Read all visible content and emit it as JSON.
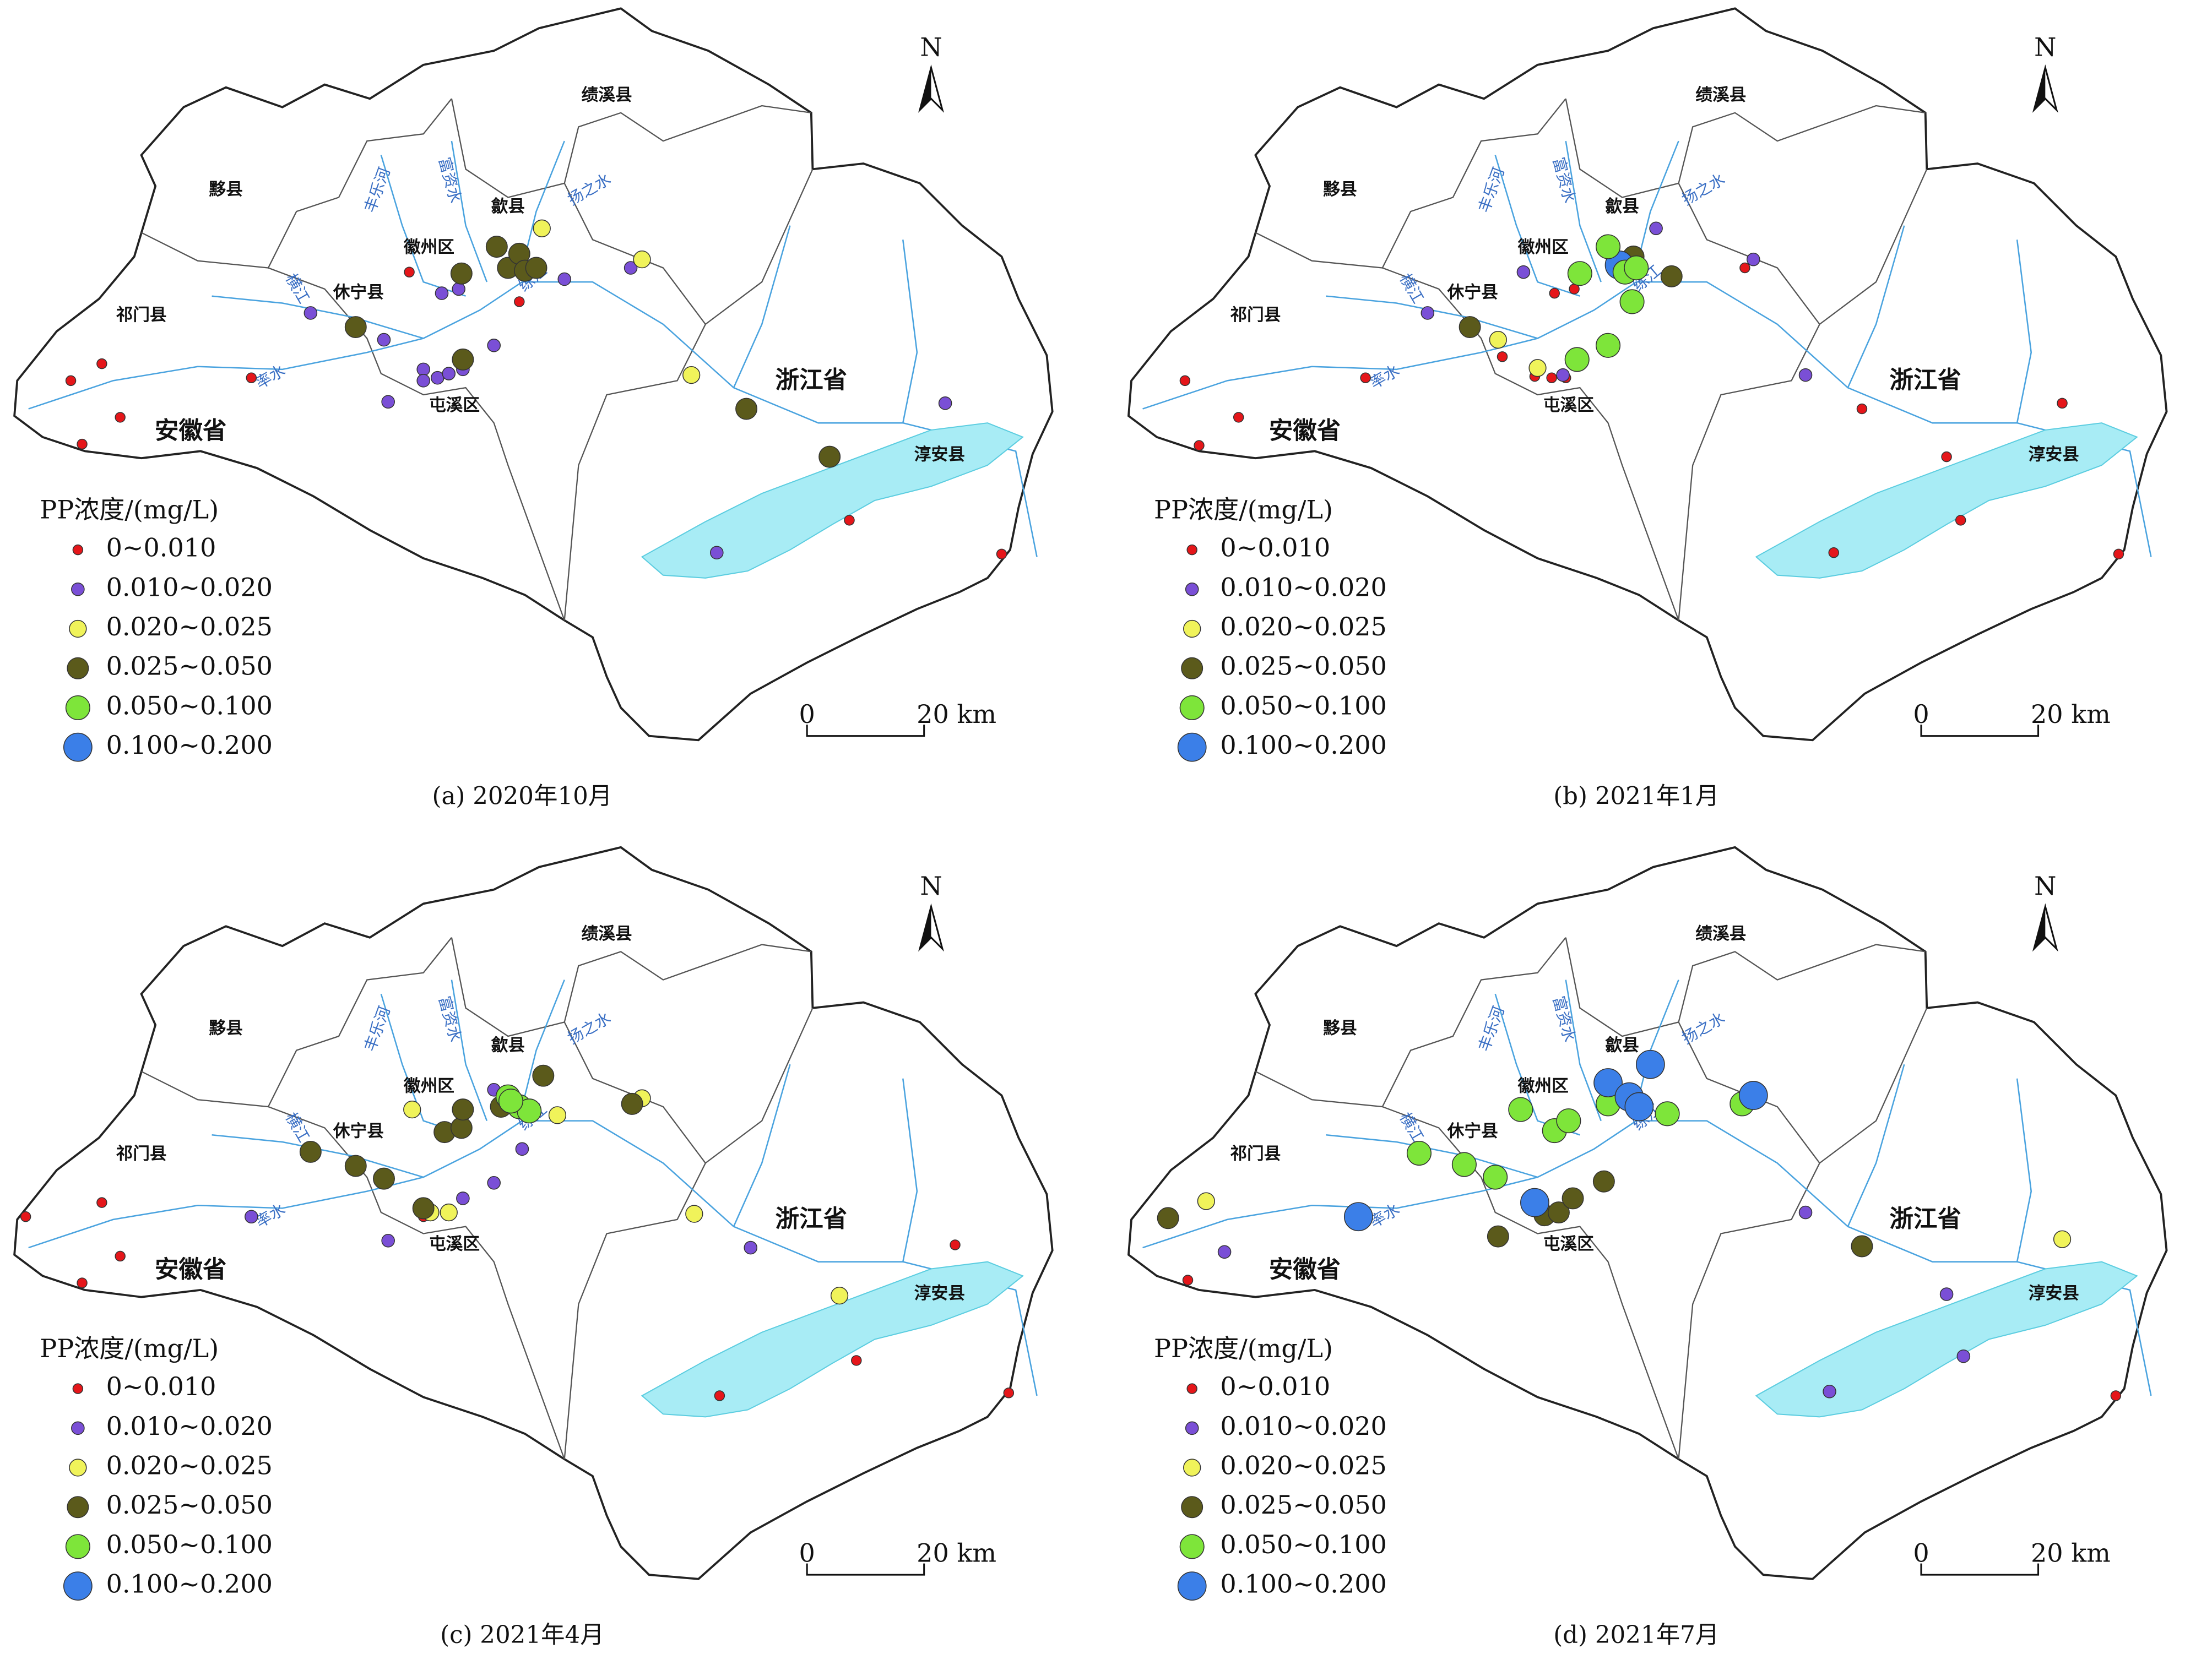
{
  "map_labels": [
    "绩溪县",
    "黟县",
    "歙县",
    "徽州区",
    "休宁县",
    "祁门县",
    "屯溪区",
    "安徽省",
    "浙江省",
    "淳安县",
    "率水",
    "横江",
    "丰乐河",
    "富资水",
    "练江",
    "扬之水"
  ],
  "legend": {
    "title": "PP浓度/(mg/L)",
    "classes": [
      {
        "label": "0~0.010",
        "color": "#e5161a"
      },
      {
        "label": "0.010~0.020",
        "color": "#7a4fd6"
      },
      {
        "label": "0.020~0.025",
        "color": "#f0f35a"
      },
      {
        "label": "0.025~0.050",
        "color": "#5b5a1b"
      },
      {
        "label": "0.050~0.100",
        "color": "#7ee53a"
      },
      {
        "label": "0.100~0.200",
        "color": "#3b7fe8"
      }
    ]
  },
  "north": "N",
  "scale_bar": [
    "0",
    "20 km"
  ],
  "panels": [
    {
      "caption": "(a)  2020年10月"
    },
    {
      "caption": "(b)  2021年1月"
    },
    {
      "caption": "(c)  2021年4月"
    },
    {
      "caption": "(d)  2021年7月"
    }
  ]
}
